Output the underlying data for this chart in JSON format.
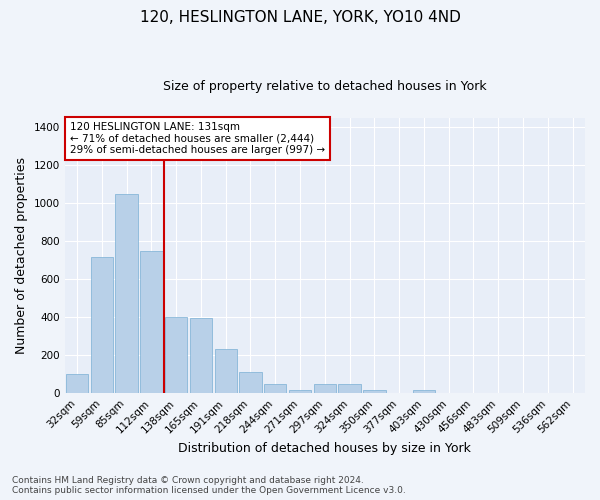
{
  "title": "120, HESLINGTON LANE, YORK, YO10 4ND",
  "subtitle": "Size of property relative to detached houses in York",
  "xlabel": "Distribution of detached houses by size in York",
  "ylabel": "Number of detached properties",
  "bar_color": "#b8d0e8",
  "bar_edge_color": "#7aafd4",
  "background_color": "#e8eef8",
  "grid_color": "#ffffff",
  "categories": [
    "32sqm",
    "59sqm",
    "85sqm",
    "112sqm",
    "138sqm",
    "165sqm",
    "191sqm",
    "218sqm",
    "244sqm",
    "271sqm",
    "297sqm",
    "324sqm",
    "350sqm",
    "377sqm",
    "403sqm",
    "430sqm",
    "456sqm",
    "483sqm",
    "509sqm",
    "536sqm",
    "562sqm"
  ],
  "values": [
    100,
    720,
    1050,
    750,
    400,
    395,
    235,
    110,
    50,
    20,
    50,
    50,
    15,
    0,
    15,
    0,
    0,
    0,
    0,
    0,
    0
  ],
  "property_line_color": "#cc0000",
  "annotation_text": "120 HESLINGTON LANE: 131sqm\n← 71% of detached houses are smaller (2,444)\n29% of semi-detached houses are larger (997) →",
  "annotation_box_color": "#cc0000",
  "ylim": [
    0,
    1450
  ],
  "yticks": [
    0,
    200,
    400,
    600,
    800,
    1000,
    1200,
    1400
  ],
  "footnote": "Contains HM Land Registry data © Crown copyright and database right 2024.\nContains public sector information licensed under the Open Government Licence v3.0.",
  "title_fontsize": 11,
  "subtitle_fontsize": 9,
  "xlabel_fontsize": 9,
  "ylabel_fontsize": 9,
  "tick_fontsize": 7.5,
  "annot_fontsize": 7.5,
  "footnote_fontsize": 6.5
}
